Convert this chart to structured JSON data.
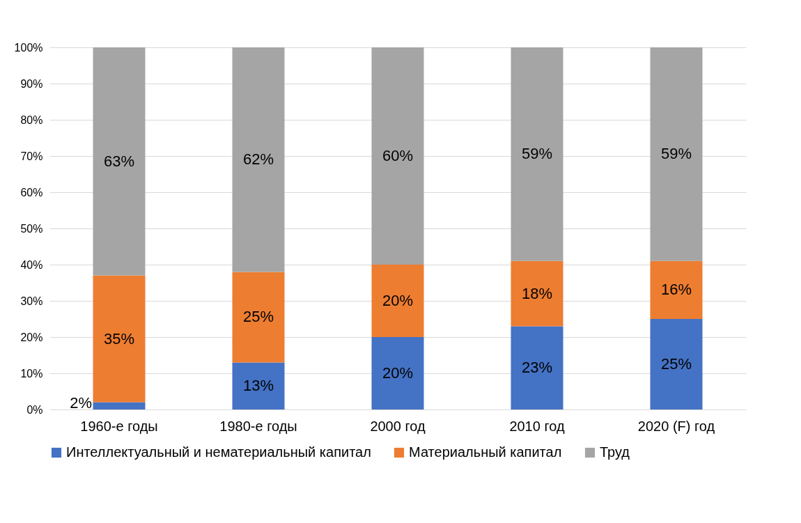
{
  "chart_data": {
    "type": "bar",
    "stacked": true,
    "categories": [
      "1960-е годы",
      "1980-е годы",
      "2000 год",
      "2010 год",
      "2020 (F) год"
    ],
    "series": [
      {
        "name": "Интеллектуальный и нематериальный капитал",
        "color": "#4472c4",
        "values": [
          2,
          13,
          20,
          23,
          25
        ],
        "value_labels": [
          "2%",
          "13%",
          "20%",
          "23%",
          "25%"
        ]
      },
      {
        "name": "Материальный капитал",
        "color": "#ed7d31",
        "values": [
          35,
          25,
          20,
          18,
          16
        ],
        "value_labels": [
          "35%",
          "25%",
          "20%",
          "18%",
          "16%"
        ]
      },
      {
        "name": "Труд",
        "color": "#a5a5a5",
        "values": [
          63,
          62,
          60,
          59,
          59
        ],
        "value_labels": [
          "63%",
          "62%",
          "60%",
          "59%",
          "59%"
        ]
      }
    ],
    "ylim": [
      0,
      100
    ],
    "yticks": [
      {
        "value": 0,
        "label": "0%"
      },
      {
        "value": 10,
        "label": "10%"
      },
      {
        "value": 20,
        "label": "20%"
      },
      {
        "value": 30,
        "label": "30%"
      },
      {
        "value": 40,
        "label": "40%"
      },
      {
        "value": 50,
        "label": "50%"
      },
      {
        "value": 60,
        "label": "60%"
      },
      {
        "value": 70,
        "label": "70%"
      },
      {
        "value": 80,
        "label": "80%"
      },
      {
        "value": 90,
        "label": "90%"
      },
      {
        "value": 100,
        "label": "100%"
      }
    ],
    "grid": "y",
    "legend": "bottom"
  }
}
